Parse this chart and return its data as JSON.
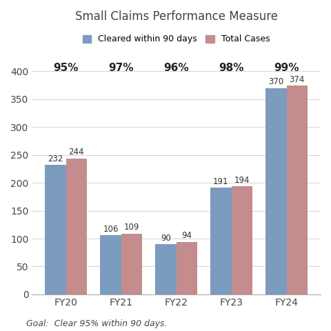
{
  "title": "Small Claims Performance Measure",
  "categories": [
    "FY20",
    "FY21",
    "FY22",
    "FY23",
    "FY24"
  ],
  "cleared": [
    232,
    106,
    90,
    191,
    370
  ],
  "total": [
    244,
    109,
    94,
    194,
    374
  ],
  "percentages": [
    "95%",
    "97%",
    "96%",
    "98%",
    "99%"
  ],
  "cleared_color": "#7b9bbf",
  "total_color": "#c48c8c",
  "background_color": "#ffffff",
  "legend_labels": [
    "Cleared within 90 days",
    "Total Cases"
  ],
  "goal_text": "Goal:  Clear 95% within 90 days.",
  "ylim": [
    0,
    430
  ],
  "yticks": [
    0,
    50,
    100,
    150,
    200,
    250,
    300,
    350,
    400
  ],
  "bar_width": 0.38,
  "title_fontsize": 12,
  "label_fontsize": 8.5,
  "pct_fontsize": 11,
  "goal_fontsize": 9,
  "tick_fontsize": 10
}
